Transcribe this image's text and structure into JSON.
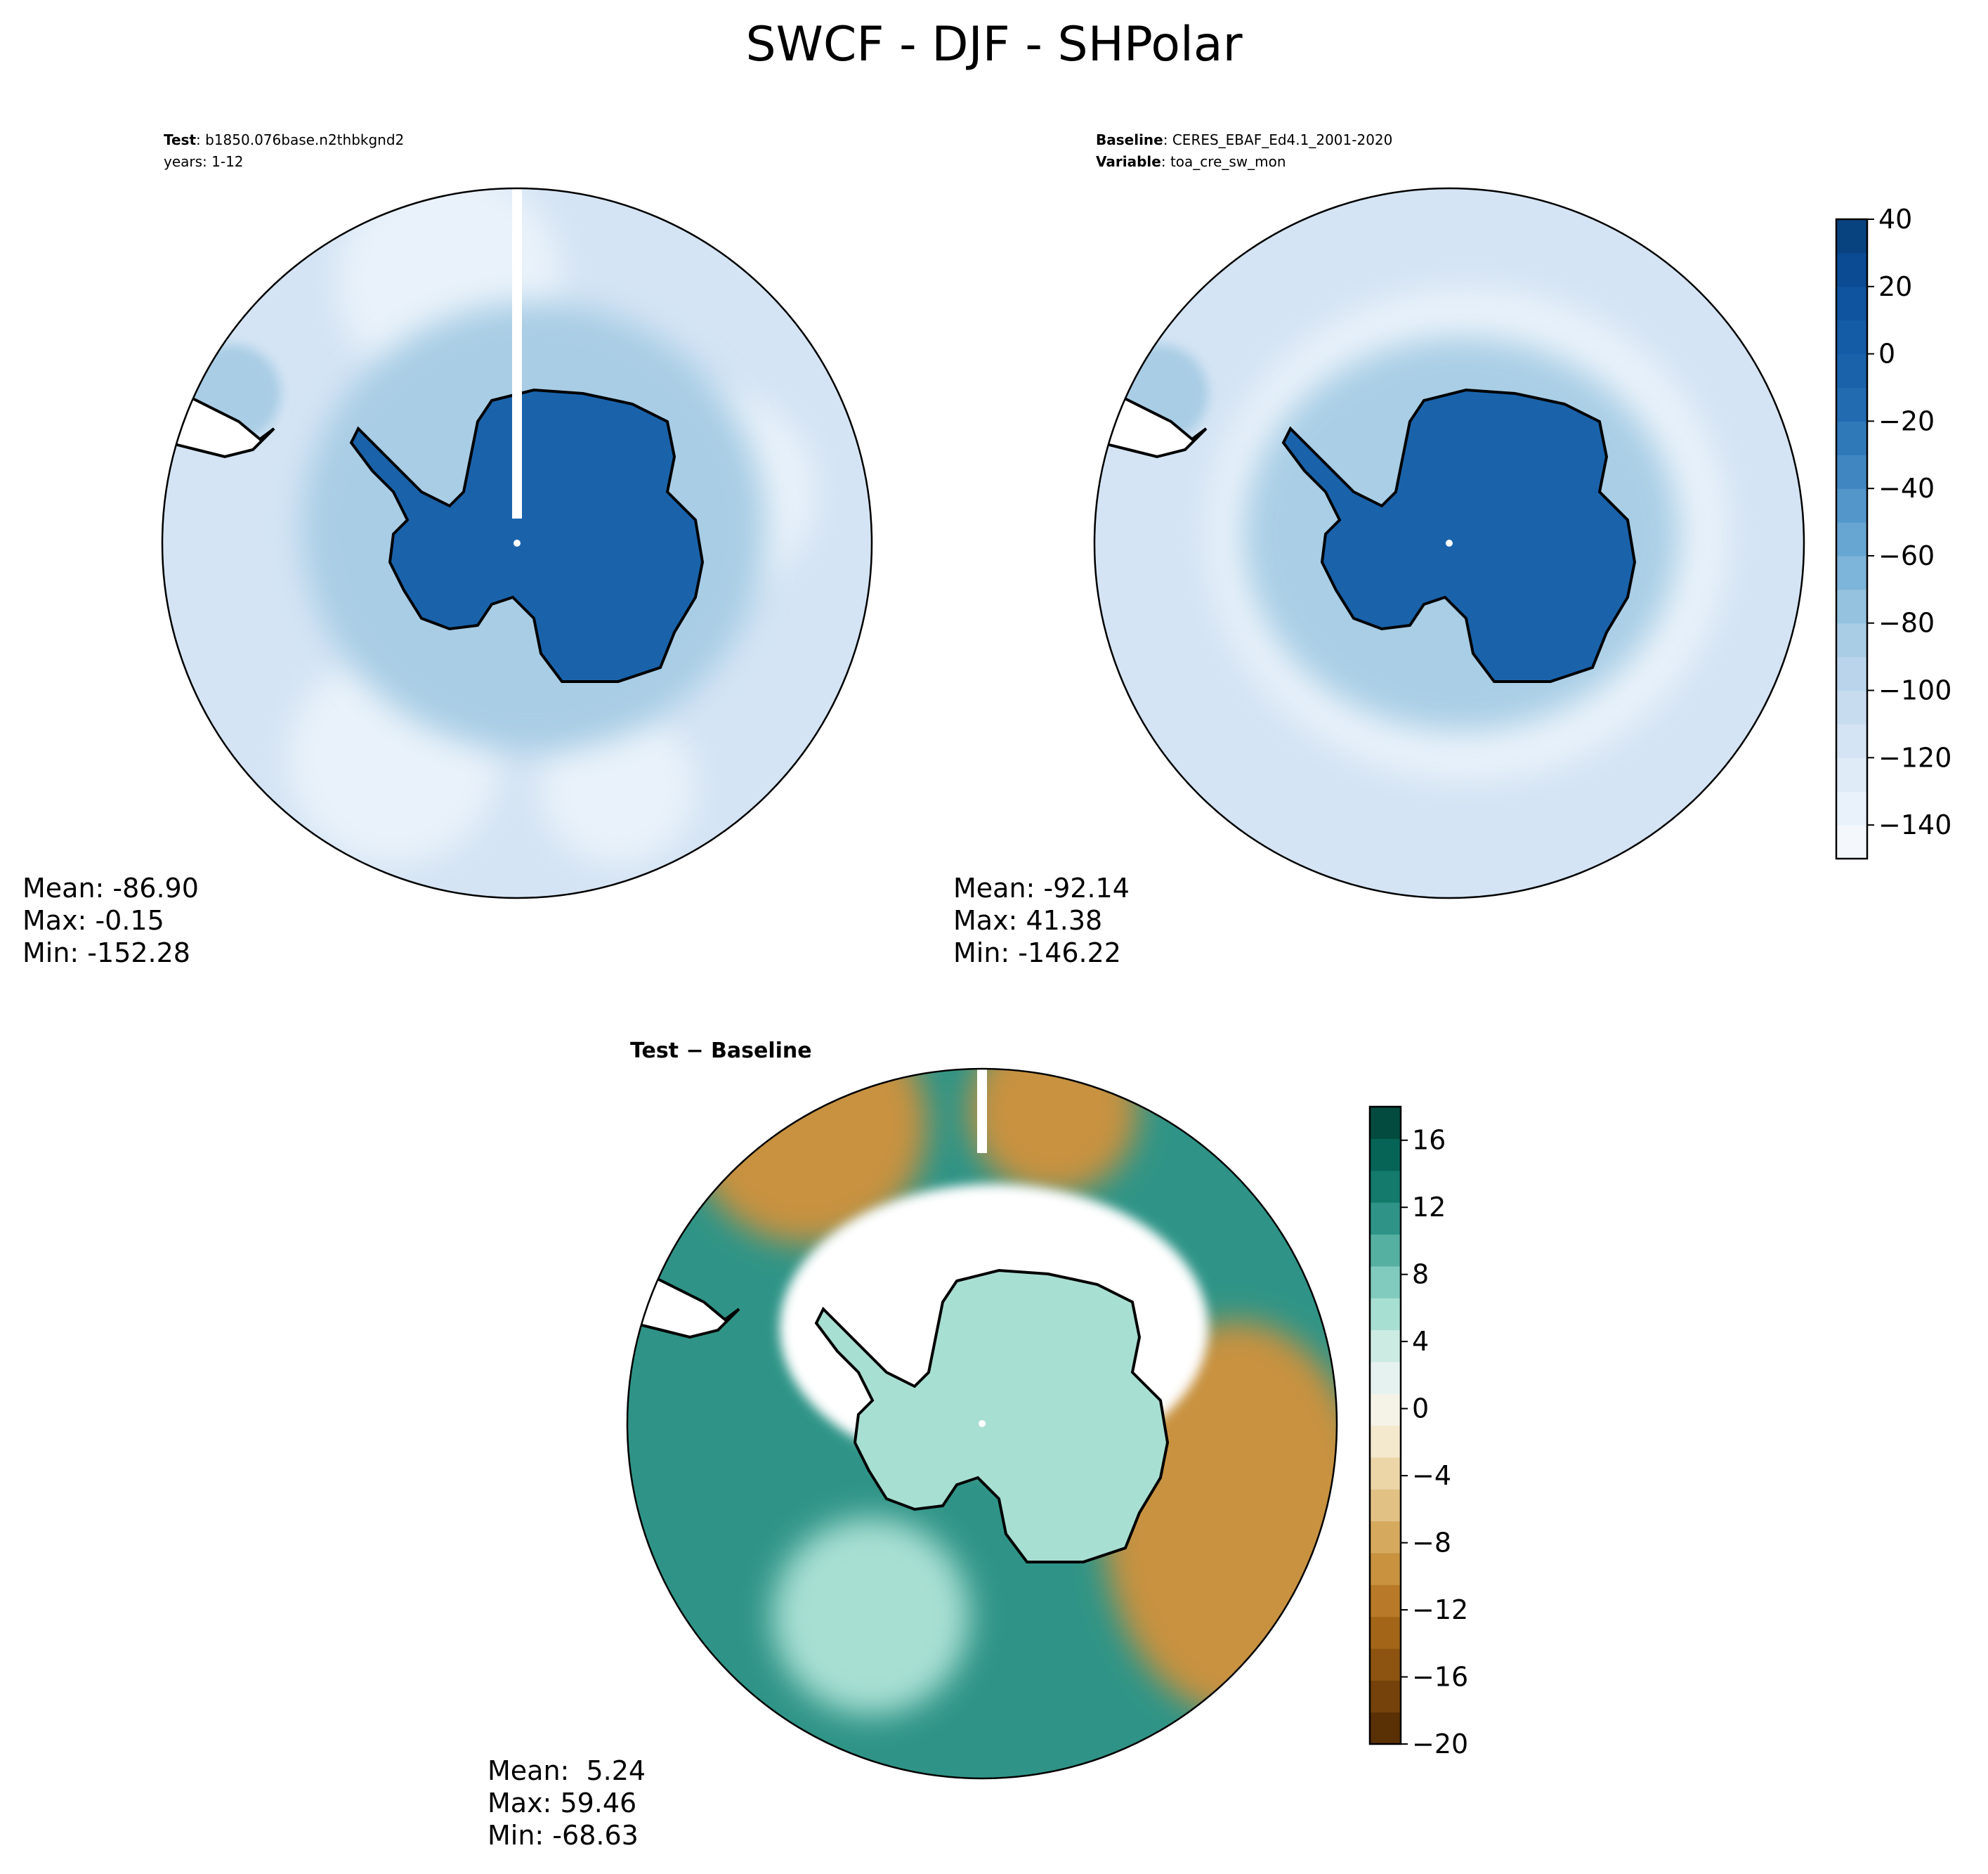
{
  "title": "SWCF - DJF - SHPolar",
  "panels": [
    {
      "id": "test",
      "meta": [
        {
          "label": "Test",
          "value": "b1850.076base.n2thbkgnd2"
        },
        {
          "label": "",
          "value": "years: 1-12"
        }
      ],
      "stats": {
        "mean": "Mean: -86.90",
        "max": "Max: -0.15",
        "min": "Min: -152.28"
      }
    },
    {
      "id": "baseline",
      "meta": [
        {
          "label": "Baseline",
          "value": "CERES_EBAF_Ed4.1_2001-2020"
        },
        {
          "label": "Variable",
          "value": "toa_cre_sw_mon"
        }
      ],
      "stats": {
        "mean": "Mean: -92.14",
        "max": "Max: 41.38",
        "min": "Min: -146.22"
      }
    },
    {
      "id": "diff",
      "title": "Test − Baseline",
      "stats": {
        "mean": "Mean:  5.24",
        "max": "Max: 59.46",
        "min": "Min: -68.63"
      }
    }
  ],
  "colorbars": {
    "main": {
      "range": [
        -150,
        40
      ],
      "tick_values": [
        40,
        20,
        0,
        -20,
        -40,
        -60,
        -80,
        -100,
        -120,
        -140
      ],
      "tick_labels": [
        "40",
        "20",
        "0",
        "−20",
        "−40",
        "−60",
        "−80",
        "−100",
        "−120",
        "−140"
      ],
      "colors": [
        "#f4f8fd",
        "#e9f2fa",
        "#dfebf7",
        "#d4e4f4",
        "#c8dcf0",
        "#bad5eb",
        "#a9cde5",
        "#94c2df",
        "#7db4d9",
        "#67a5d2",
        "#5296ca",
        "#4087c1",
        "#3079b9",
        "#226bb0",
        "#1a63ab",
        "#155ca6",
        "#0f549f",
        "#0b4b94",
        "#08437f"
      ]
    },
    "diff": {
      "range": [
        -20,
        18
      ],
      "tick_values": [
        16,
        12,
        8,
        4,
        0,
        -4,
        -8,
        -12,
        -16,
        -20
      ],
      "tick_labels": [
        "16",
        "12",
        "8",
        "4",
        "0",
        "−4",
        "−8",
        "−12",
        "−16",
        "−20"
      ],
      "colors": [
        "#5a3005",
        "#74420a",
        "#8c5410",
        "#a36618",
        "#b87a28",
        "#c8923f",
        "#d6aa5e",
        "#e2c184",
        "#ecd6a8",
        "#f4e8cd",
        "#f5f2e8",
        "#e6f2ef",
        "#cbebe3",
        "#a8dfd3",
        "#80cbbd",
        "#56b0a2",
        "#2f9487",
        "#137a6c",
        "#066456",
        "#034b3f"
      ]
    }
  },
  "map_colors": {
    "test_ocean": "#d4e4f4",
    "test_ocean_light": "#e9f2fa",
    "test_ring": "#a9cde5",
    "test_land": "#1a63ab",
    "baseline_ocean": "#d4e4f4",
    "baseline_ring": "#e9f2fa",
    "baseline_land": "#1a63ab",
    "diff_teal": "#2f9487",
    "diff_brown": "#c8923f",
    "diff_white": "#ffffff",
    "diff_land": "#a8dfd3",
    "coastline": "#000000"
  }
}
